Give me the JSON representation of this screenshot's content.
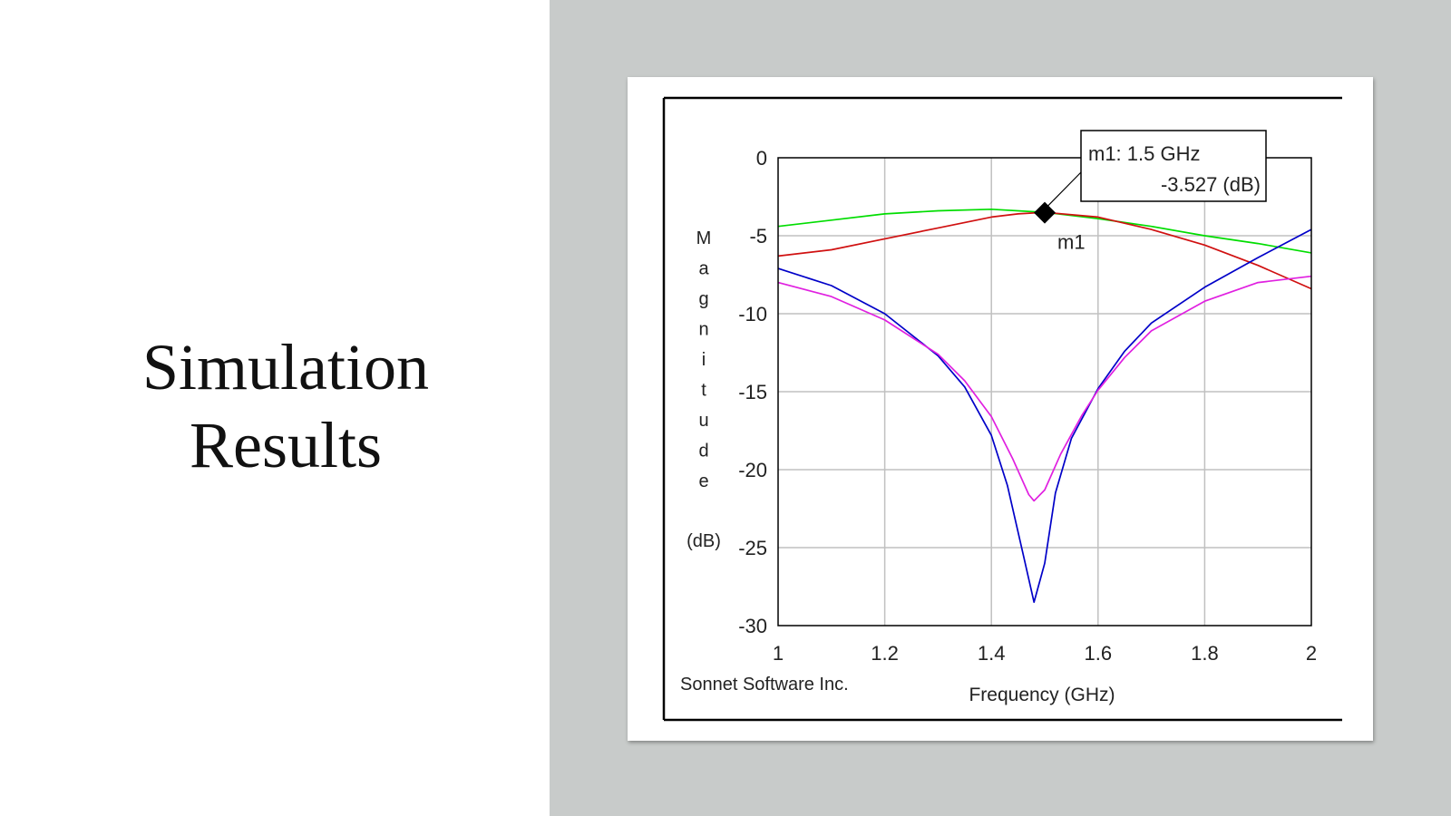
{
  "slide": {
    "title_line1": "Simulation",
    "title_line2": "Results"
  },
  "colors": {
    "background": "#c8cbca",
    "grid": "#c0c0c0",
    "series1": "#00dd00",
    "series2": "#d01010",
    "series3": "#0000c8",
    "series4": "#e020e0"
  },
  "chart_data": {
    "type": "line",
    "xlabel": "Frequency (GHz)",
    "ylabel_letters": [
      "M",
      "a",
      "g",
      "n",
      "i",
      "t",
      "u",
      "d",
      "e"
    ],
    "ylabel_unit": "(dB)",
    "xlim": [
      1,
      2
    ],
    "ylim": [
      -30,
      0
    ],
    "xticks": [
      1,
      1.2,
      1.4,
      1.6,
      1.8,
      2
    ],
    "xtick_labels": [
      "1",
      "1.2",
      "1.4",
      "1.6",
      "1.8",
      "2"
    ],
    "yticks": [
      0,
      -5,
      -10,
      -15,
      -20,
      -25,
      -30
    ],
    "ytick_labels": [
      "0",
      "-5",
      "-10",
      "-15",
      "-20",
      "-25",
      "-30"
    ],
    "grid": true,
    "watermark": "Sonnet Software Inc.",
    "marker": {
      "name": "m1",
      "x": 1.5,
      "y": -3.527,
      "label_line1": "m1: 1.5 GHz",
      "label_line2": "-3.527  (dB)"
    },
    "series": [
      {
        "color": "#00dd00",
        "x": [
          1.0,
          1.1,
          1.2,
          1.3,
          1.4,
          1.5,
          1.6,
          1.7,
          1.8,
          1.9,
          2.0
        ],
        "y": [
          -4.4,
          -4.0,
          -3.6,
          -3.4,
          -3.3,
          -3.5,
          -3.9,
          -4.4,
          -5.0,
          -5.5,
          -6.1
        ]
      },
      {
        "color": "#d01010",
        "x": [
          1.0,
          1.1,
          1.2,
          1.3,
          1.4,
          1.45,
          1.5,
          1.6,
          1.7,
          1.8,
          1.9,
          2.0
        ],
        "y": [
          -6.3,
          -5.9,
          -5.2,
          -4.5,
          -3.8,
          -3.6,
          -3.5,
          -3.8,
          -4.6,
          -5.6,
          -6.9,
          -8.4
        ]
      },
      {
        "color": "#0000c8",
        "x": [
          1.0,
          1.1,
          1.2,
          1.3,
          1.35,
          1.4,
          1.43,
          1.46,
          1.48,
          1.5,
          1.52,
          1.55,
          1.6,
          1.65,
          1.7,
          1.8,
          1.9,
          2.0
        ],
        "y": [
          -7.1,
          -8.2,
          -10.0,
          -12.7,
          -14.7,
          -17.8,
          -21.0,
          -25.5,
          -28.5,
          -26.0,
          -21.5,
          -18.0,
          -14.8,
          -12.4,
          -10.6,
          -8.3,
          -6.4,
          -4.6
        ]
      },
      {
        "color": "#e020e0",
        "x": [
          1.0,
          1.1,
          1.2,
          1.3,
          1.35,
          1.4,
          1.44,
          1.47,
          1.48,
          1.5,
          1.53,
          1.57,
          1.6,
          1.65,
          1.7,
          1.8,
          1.9,
          2.0
        ],
        "y": [
          -8.0,
          -8.9,
          -10.4,
          -12.6,
          -14.3,
          -16.6,
          -19.3,
          -21.6,
          -22.0,
          -21.3,
          -19.0,
          -16.5,
          -14.9,
          -12.8,
          -11.1,
          -9.2,
          -8.0,
          -7.6
        ]
      }
    ]
  }
}
